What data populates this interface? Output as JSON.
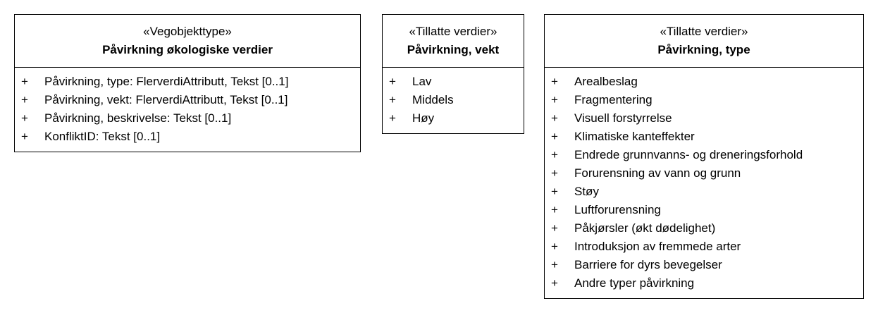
{
  "boxes": [
    {
      "stereotype": "«Vegobjekttype»",
      "name": "Påvirkning økologiske verdier",
      "attributes": [
        {
          "visibility": "+",
          "text": "Påvirkning, type: FlerverdiAttributt, Tekst [0..1]"
        },
        {
          "visibility": "+",
          "text": "Påvirkning, vekt: FlerverdiAttributt, Tekst [0..1]"
        },
        {
          "visibility": "+",
          "text": "Påvirkning, beskrivelse: Tekst [0..1]"
        },
        {
          "visibility": "+",
          "text": "KonfliktID: Tekst [0..1]"
        }
      ]
    },
    {
      "stereotype": "«Tillatte verdier»",
      "name": "Påvirkning, vekt",
      "attributes": [
        {
          "visibility": "+",
          "text": "Lav"
        },
        {
          "visibility": "+",
          "text": "Middels"
        },
        {
          "visibility": "+",
          "text": "Høy"
        }
      ]
    },
    {
      "stereotype": "«Tillatte verdier»",
      "name": "Påvirkning, type",
      "attributes": [
        {
          "visibility": "+",
          "text": "Arealbeslag"
        },
        {
          "visibility": "+",
          "text": "Fragmentering"
        },
        {
          "visibility": "+",
          "text": "Visuell forstyrrelse"
        },
        {
          "visibility": "+",
          "text": "Klimatiske kanteffekter"
        },
        {
          "visibility": "+",
          "text": "Endrede grunnvanns- og dreneringsforhold"
        },
        {
          "visibility": "+",
          "text": "Forurensning av vann og grunn"
        },
        {
          "visibility": "+",
          "text": "Støy"
        },
        {
          "visibility": "+",
          "text": "Luftforurensning"
        },
        {
          "visibility": "+",
          "text": "Påkjørsler (økt dødelighet)"
        },
        {
          "visibility": "+",
          "text": "Introduksjon av fremmede arter"
        },
        {
          "visibility": "+",
          "text": "Barriere for dyrs bevegelser"
        },
        {
          "visibility": "+",
          "text": "Andre typer påvirkning"
        }
      ]
    }
  ]
}
